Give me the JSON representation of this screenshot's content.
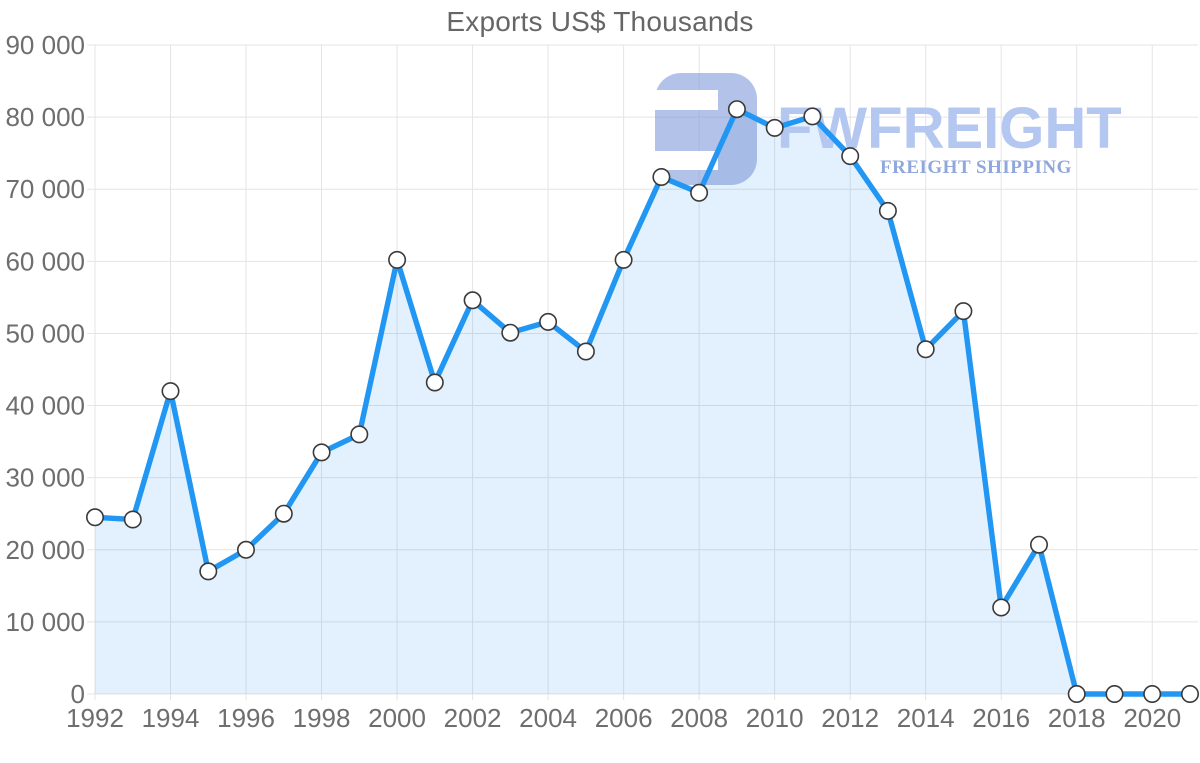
{
  "title": "Exports US$ Thousands",
  "watermark": {
    "brand": "FWFREIGHT",
    "tagline": "FREIGHT SHIPPING",
    "icon": "fwfreight-logo-icon",
    "brand_color": "#b4c7f0",
    "tagline_color": "#8fa7dd",
    "icon_color": "rgba(126,153,217,0.60)"
  },
  "chart_data": {
    "type": "area",
    "title": "Exports US$ Thousands",
    "xlabel": "",
    "ylabel": "",
    "legend_position": "none",
    "grid": true,
    "marker": "circle",
    "xlim": [
      1992,
      2021
    ],
    "ylim": [
      0,
      90000
    ],
    "x": [
      1992,
      1993,
      1994,
      1995,
      1996,
      1997,
      1998,
      1999,
      2000,
      2001,
      2002,
      2003,
      2004,
      2005,
      2006,
      2007,
      2008,
      2009,
      2010,
      2011,
      2012,
      2013,
      2014,
      2015,
      2016,
      2017,
      2018,
      2019,
      2020,
      2021
    ],
    "values": [
      24500,
      24200,
      42000,
      17000,
      20000,
      25000,
      33500,
      36000,
      60200,
      43200,
      54600,
      50100,
      51600,
      47500,
      60200,
      71700,
      69500,
      81100,
      78500,
      80100,
      74600,
      67000,
      47800,
      53100,
      12000,
      20700,
      0,
      0,
      0,
      0
    ],
    "xtick_labels": [
      "1992",
      "1994",
      "1996",
      "1998",
      "2000",
      "2002",
      "2004",
      "2006",
      "2008",
      "2010",
      "2012",
      "2014",
      "2016",
      "2018",
      "2020"
    ],
    "xtick_years": [
      1992,
      1994,
      1996,
      1998,
      2000,
      2002,
      2004,
      2006,
      2008,
      2010,
      2012,
      2014,
      2016,
      2018,
      2020
    ],
    "ytick_values": [
      0,
      10000,
      20000,
      30000,
      40000,
      50000,
      60000,
      70000,
      80000,
      90000
    ],
    "ytick_labels": [
      "0",
      "10 000",
      "20 000",
      "30 000",
      "40 000",
      "50 000",
      "60 000",
      "70 000",
      "80 000",
      "90 000"
    ],
    "colors": {
      "line": "#2196f3",
      "area_fill": "rgba(33,150,243,0.13)",
      "marker_fill": "#ffffff",
      "marker_stroke": "#3a3a3a",
      "grid": "#e4e4e4",
      "axis_text": "#6e6e6e",
      "title_text": "#666666"
    }
  }
}
